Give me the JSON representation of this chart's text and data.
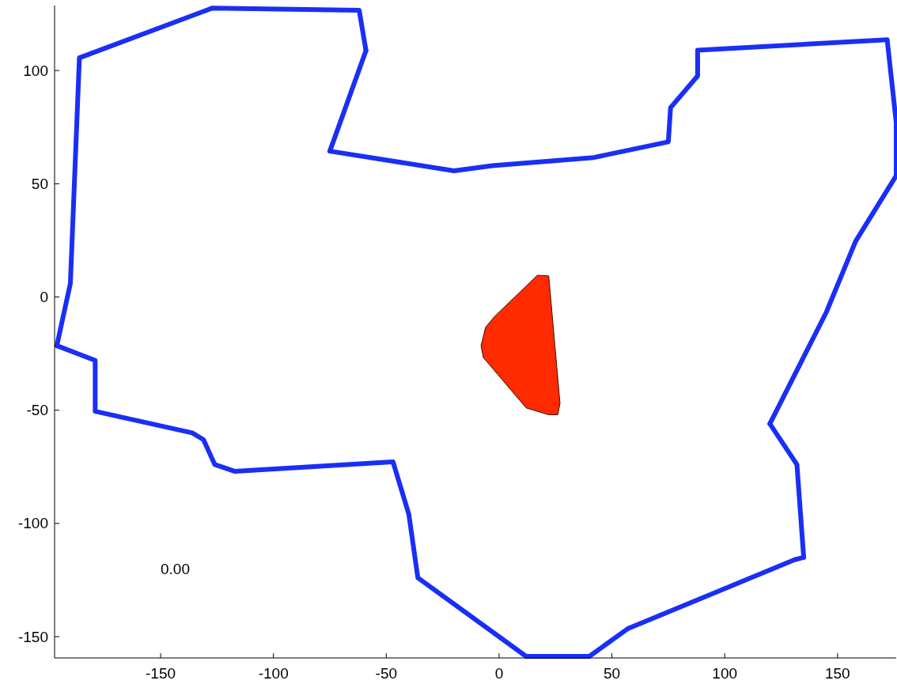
{
  "chart_data": {
    "type": "line",
    "xlim": [
      -197,
      176
    ],
    "ylim": [
      -159.4,
      128.7
    ],
    "xticks": [
      -150,
      -100,
      -50,
      0,
      50,
      100,
      150
    ],
    "yticks": [
      -150,
      -100,
      -50,
      0,
      50,
      100
    ],
    "grid": false,
    "marker": "none",
    "line_style": "solid",
    "annotations": [
      "0.00"
    ],
    "series": [
      {
        "color": "#1a2ff5",
        "x": [
          -196,
          -190,
          -186,
          -127,
          -62,
          -59
        ],
        "values": [
          -21.5,
          6,
          105.6,
          127.6,
          126.6,
          108.8
        ]
      },
      {
        "color": "#1a2ff5",
        "x": [
          -75,
          -59
        ],
        "values": [
          64.4,
          108.8
        ]
      },
      {
        "color": "#1a2ff5",
        "x": [
          -75,
          -20,
          -3,
          42,
          75,
          76,
          88,
          88,
          172,
          176,
          176
        ],
        "values": [
          64.4,
          55.7,
          58,
          61.6,
          68.5,
          83.6,
          97.6,
          109,
          113.6,
          77,
          53.6
        ]
      },
      {
        "color": "#1a2ff5",
        "x": [
          120,
          145,
          158,
          176
        ],
        "values": [
          -56,
          -6.8,
          24.6,
          53.6
        ]
      },
      {
        "color": "#1a2ff5",
        "x": [
          120,
          132,
          135
        ],
        "values": [
          -56,
          -74,
          -115
        ]
      },
      {
        "color": "#1a2ff5",
        "x": [
          -196,
          -179,
          -179,
          -136,
          -131,
          -126,
          -117,
          -47,
          -40,
          -36,
          12,
          40,
          57,
          131,
          135
        ],
        "values": [
          -21.5,
          -28,
          -50.5,
          -60,
          -63,
          -74,
          -77,
          -72.8,
          -96,
          -124,
          -158.7,
          -158.7,
          -146.5,
          -116,
          -115
        ]
      },
      {
        "type": "area",
        "color": "#ff2a00",
        "x": [
          17,
          22,
          27,
          26,
          22,
          12,
          -7,
          -8,
          -6,
          -2,
          17
        ],
        "values": [
          9.6,
          9.3,
          -47,
          -52,
          -52,
          -49,
          -26.7,
          -21.5,
          -13.4,
          -8.6,
          9.6
        ]
      }
    ]
  }
}
